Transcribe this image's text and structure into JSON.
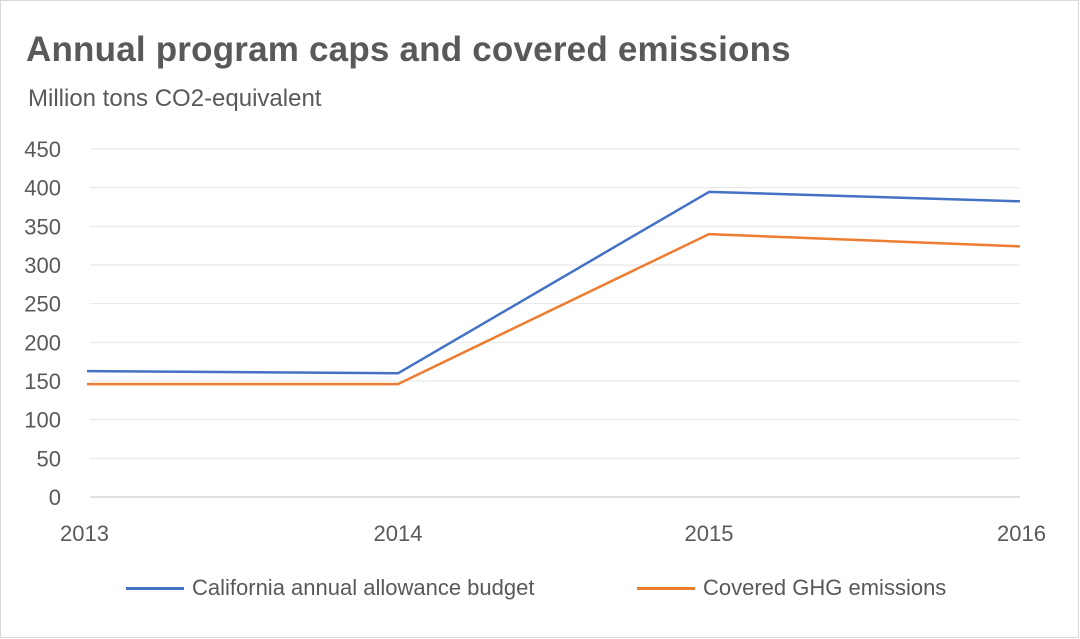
{
  "chart_data": {
    "type": "line",
    "title": "Annual program caps and covered emissions",
    "subtitle": "Million tons CO2-equivalent",
    "x": [
      "2013",
      "2014",
      "2015",
      "2016"
    ],
    "ylim": [
      0,
      450
    ],
    "yticks": [
      "0",
      "50",
      "100",
      "150",
      "200",
      "250",
      "300",
      "350",
      "400",
      "450"
    ],
    "grid": true,
    "legend_position": "bottom",
    "series": [
      {
        "name": "California annual allowance budget",
        "color": "#4472C4",
        "values": [
          162.8,
          160,
          394.5,
          382.4
        ]
      },
      {
        "name": "Covered GHG emissions",
        "color": "#ED7D31",
        "values": [
          146,
          146,
          340,
          324
        ]
      }
    ]
  }
}
